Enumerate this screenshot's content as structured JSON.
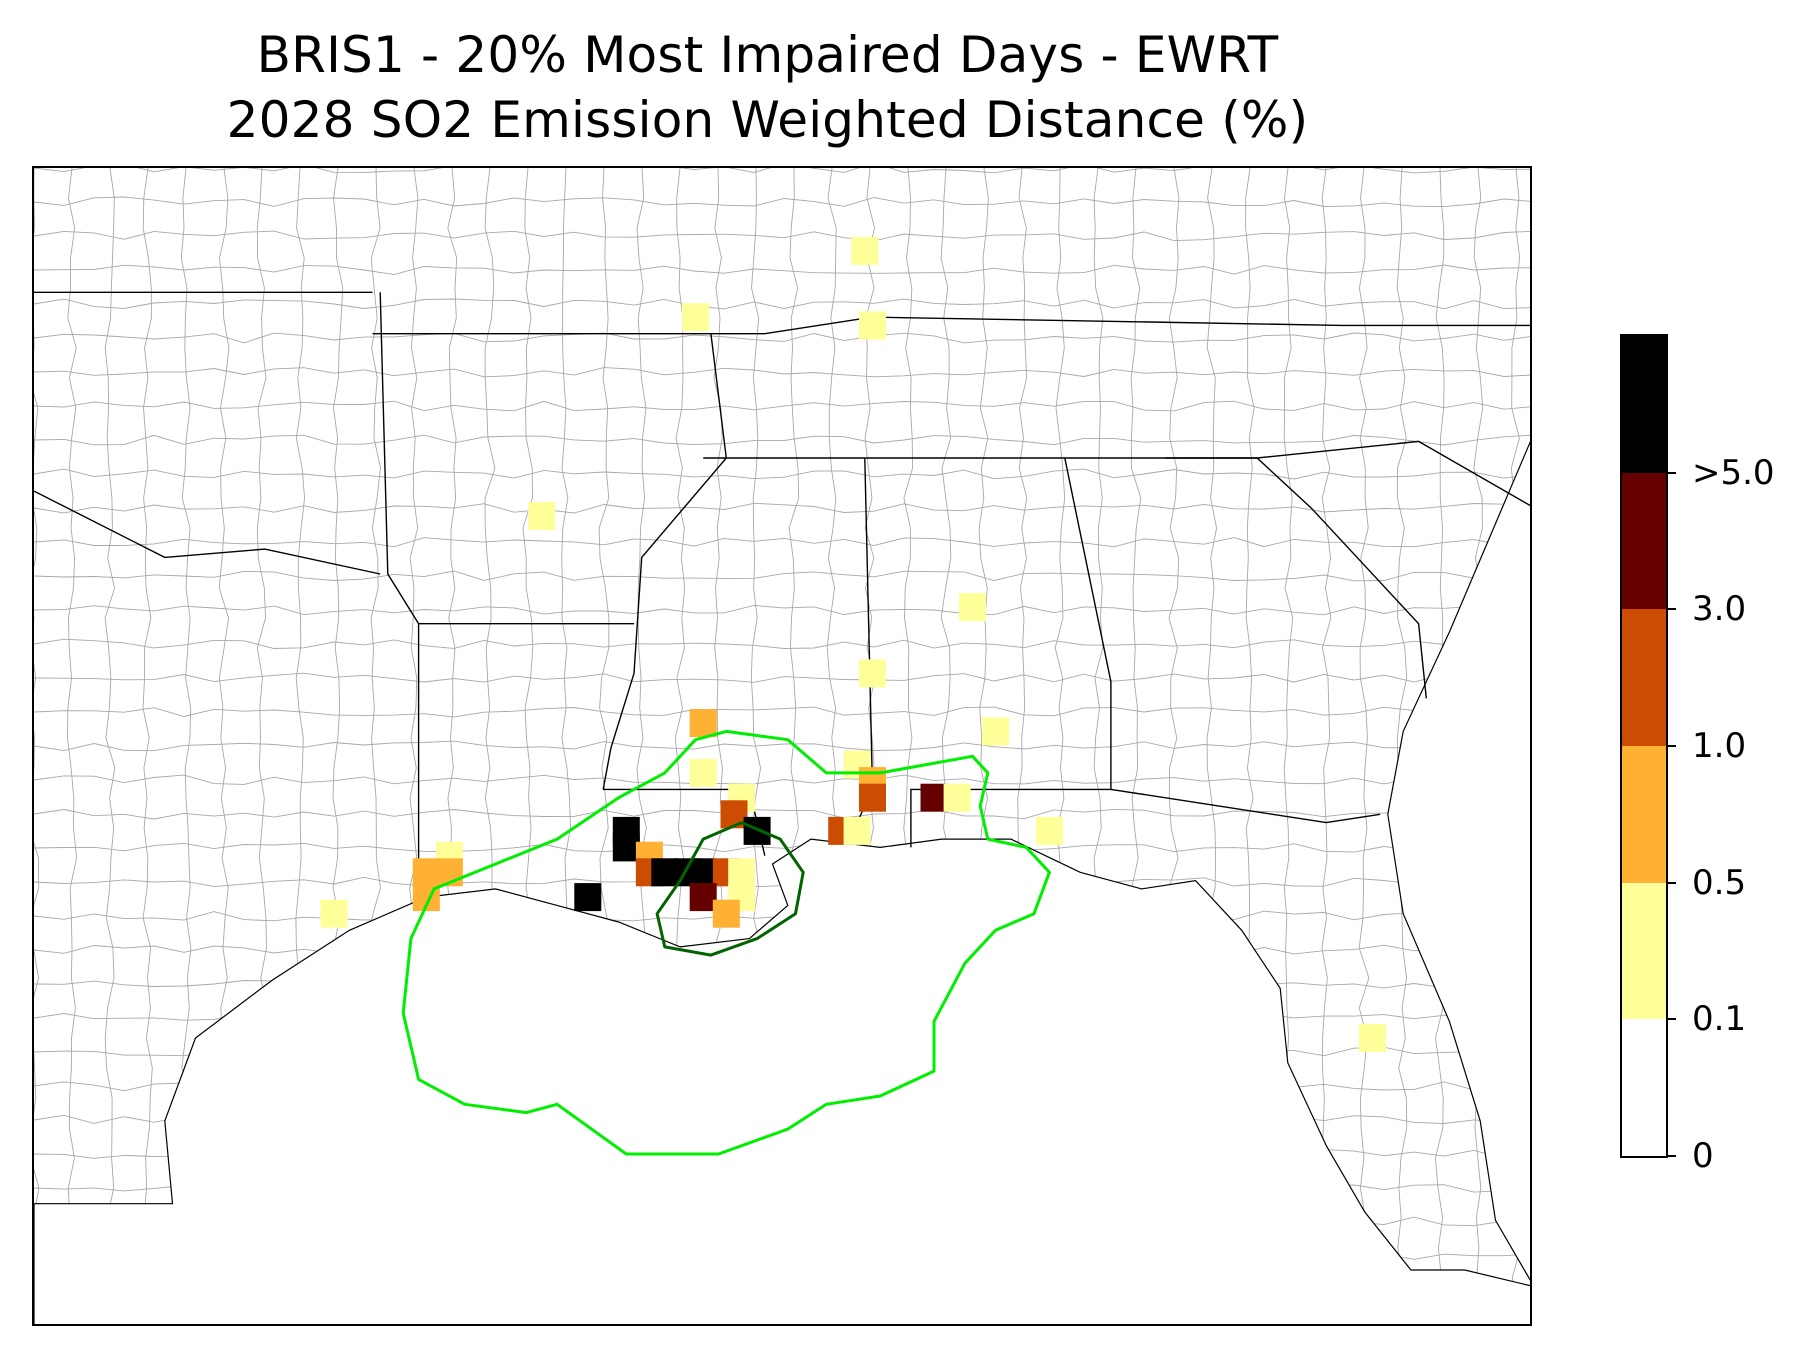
{
  "title": {
    "line1": "BRIS1 - 20% Most Impaired Days - EWRT",
    "line2": "2028 SO2 Emission Weighted Distance (%)"
  },
  "colorbar": {
    "bins": [
      {
        "lo": 0.0,
        "hi": 0.1,
        "color": "#ffffff"
      },
      {
        "lo": 0.1,
        "hi": 0.5,
        "color": "#ffff99"
      },
      {
        "lo": 0.5,
        "hi": 1.0,
        "color": "#feb133"
      },
      {
        "lo": 1.0,
        "hi": 3.0,
        "color": "#cc4c02"
      },
      {
        "lo": 3.0,
        "hi": 5.0,
        "color": "#660000"
      },
      {
        "lo": 5.0,
        "hi": null,
        "color": "#000000"
      }
    ],
    "tick_labels": [
      "0",
      "0.1",
      "0.5",
      "1.0",
      "3.0",
      ">5.0"
    ]
  },
  "map": {
    "region": "Southeastern United States",
    "lon_range": [
      -99.0,
      -79.5
    ],
    "lat_range": [
      24.5,
      38.5
    ],
    "county_line_color": "#a8a8a8",
    "state_line_color": "#000000",
    "contour_colors": {
      "outer": "#00ee00",
      "inner": "#006400"
    }
  },
  "grid_cells": [
    {
      "lon": -88.2,
      "lat": 37.5,
      "bin": 1
    },
    {
      "lon": -90.4,
      "lat": 36.7,
      "bin": 1
    },
    {
      "lon": -88.1,
      "lat": 36.6,
      "bin": 1
    },
    {
      "lon": -92.4,
      "lat": 34.3,
      "bin": 1
    },
    {
      "lon": -86.8,
      "lat": 33.2,
      "bin": 1
    },
    {
      "lon": -88.1,
      "lat": 32.4,
      "bin": 1
    },
    {
      "lon": -86.5,
      "lat": 31.7,
      "bin": 1
    },
    {
      "lon": -90.3,
      "lat": 31.8,
      "bin": 2
    },
    {
      "lon": -90.3,
      "lat": 31.2,
      "bin": 1
    },
    {
      "lon": -89.8,
      "lat": 30.9,
      "bin": 1
    },
    {
      "lon": -88.3,
      "lat": 31.3,
      "bin": 1
    },
    {
      "lon": -88.1,
      "lat": 31.1,
      "bin": 2
    },
    {
      "lon": -88.1,
      "lat": 30.9,
      "bin": 3
    },
    {
      "lon": -87.3,
      "lat": 30.9,
      "bin": 4
    },
    {
      "lon": -87.0,
      "lat": 30.9,
      "bin": 1
    },
    {
      "lon": -85.8,
      "lat": 30.5,
      "bin": 1
    },
    {
      "lon": -89.9,
      "lat": 30.7,
      "bin": 3
    },
    {
      "lon": -89.6,
      "lat": 30.5,
      "bin": 5
    },
    {
      "lon": -88.5,
      "lat": 30.5,
      "bin": 3
    },
    {
      "lon": -88.3,
      "lat": 30.5,
      "bin": 1
    },
    {
      "lon": -91.3,
      "lat": 30.5,
      "bin": 5
    },
    {
      "lon": -91.3,
      "lat": 30.3,
      "bin": 5
    },
    {
      "lon": -91.0,
      "lat": 30.2,
      "bin": 2
    },
    {
      "lon": -91.0,
      "lat": 30.0,
      "bin": 3
    },
    {
      "lon": -90.8,
      "lat": 30.0,
      "bin": 5
    },
    {
      "lon": -90.5,
      "lat": 30.0,
      "bin": 5
    },
    {
      "lon": -90.3,
      "lat": 30.0,
      "bin": 5
    },
    {
      "lon": -90.0,
      "lat": 30.0,
      "bin": 3
    },
    {
      "lon": -89.8,
      "lat": 30.0,
      "bin": 1
    },
    {
      "lon": -90.3,
      "lat": 29.7,
      "bin": 4
    },
    {
      "lon": -89.8,
      "lat": 29.7,
      "bin": 1
    },
    {
      "lon": -90.0,
      "lat": 29.5,
      "bin": 2
    },
    {
      "lon": -91.8,
      "lat": 29.7,
      "bin": 5
    },
    {
      "lon": -93.6,
      "lat": 30.2,
      "bin": 1
    },
    {
      "lon": -93.9,
      "lat": 30.0,
      "bin": 2
    },
    {
      "lon": -93.6,
      "lat": 30.0,
      "bin": 2
    },
    {
      "lon": -93.9,
      "lat": 29.7,
      "bin": 2
    },
    {
      "lon": -95.1,
      "lat": 29.5,
      "bin": 1
    },
    {
      "lon": -81.6,
      "lat": 28.0,
      "bin": 1
    }
  ],
  "contours": {
    "outer_ring": [
      [
        -93.8,
        29.8
      ],
      [
        -93.0,
        30.1
      ],
      [
        -92.2,
        30.4
      ],
      [
        -91.4,
        30.9
      ],
      [
        -90.8,
        31.2
      ],
      [
        -90.4,
        31.6
      ],
      [
        -90.0,
        31.7
      ],
      [
        -89.2,
        31.6
      ],
      [
        -88.7,
        31.2
      ],
      [
        -88.0,
        31.2
      ],
      [
        -86.8,
        31.4
      ],
      [
        -86.6,
        31.2
      ],
      [
        -86.7,
        30.8
      ],
      [
        -86.6,
        30.4
      ],
      [
        -86.1,
        30.3
      ],
      [
        -85.8,
        30.0
      ],
      [
        -86.0,
        29.5
      ],
      [
        -86.5,
        29.3
      ],
      [
        -86.9,
        28.9
      ],
      [
        -87.3,
        28.2
      ],
      [
        -87.3,
        27.6
      ],
      [
        -88.0,
        27.3
      ],
      [
        -88.7,
        27.2
      ],
      [
        -89.2,
        26.9
      ],
      [
        -90.1,
        26.6
      ],
      [
        -90.7,
        26.6
      ],
      [
        -91.3,
        26.6
      ],
      [
        -92.2,
        27.2
      ],
      [
        -92.6,
        27.1
      ],
      [
        -93.4,
        27.2
      ],
      [
        -94.0,
        27.5
      ],
      [
        -94.2,
        28.3
      ],
      [
        -94.1,
        29.2
      ],
      [
        -93.8,
        29.8
      ]
    ],
    "inner_ring": [
      [
        -90.6,
        29.9
      ],
      [
        -90.3,
        30.4
      ],
      [
        -89.8,
        30.6
      ],
      [
        -89.3,
        30.4
      ],
      [
        -89.0,
        30.0
      ],
      [
        -89.1,
        29.5
      ],
      [
        -89.6,
        29.2
      ],
      [
        -90.2,
        29.0
      ],
      [
        -90.8,
        29.1
      ],
      [
        -90.9,
        29.5
      ],
      [
        -90.6,
        29.9
      ]
    ]
  }
}
